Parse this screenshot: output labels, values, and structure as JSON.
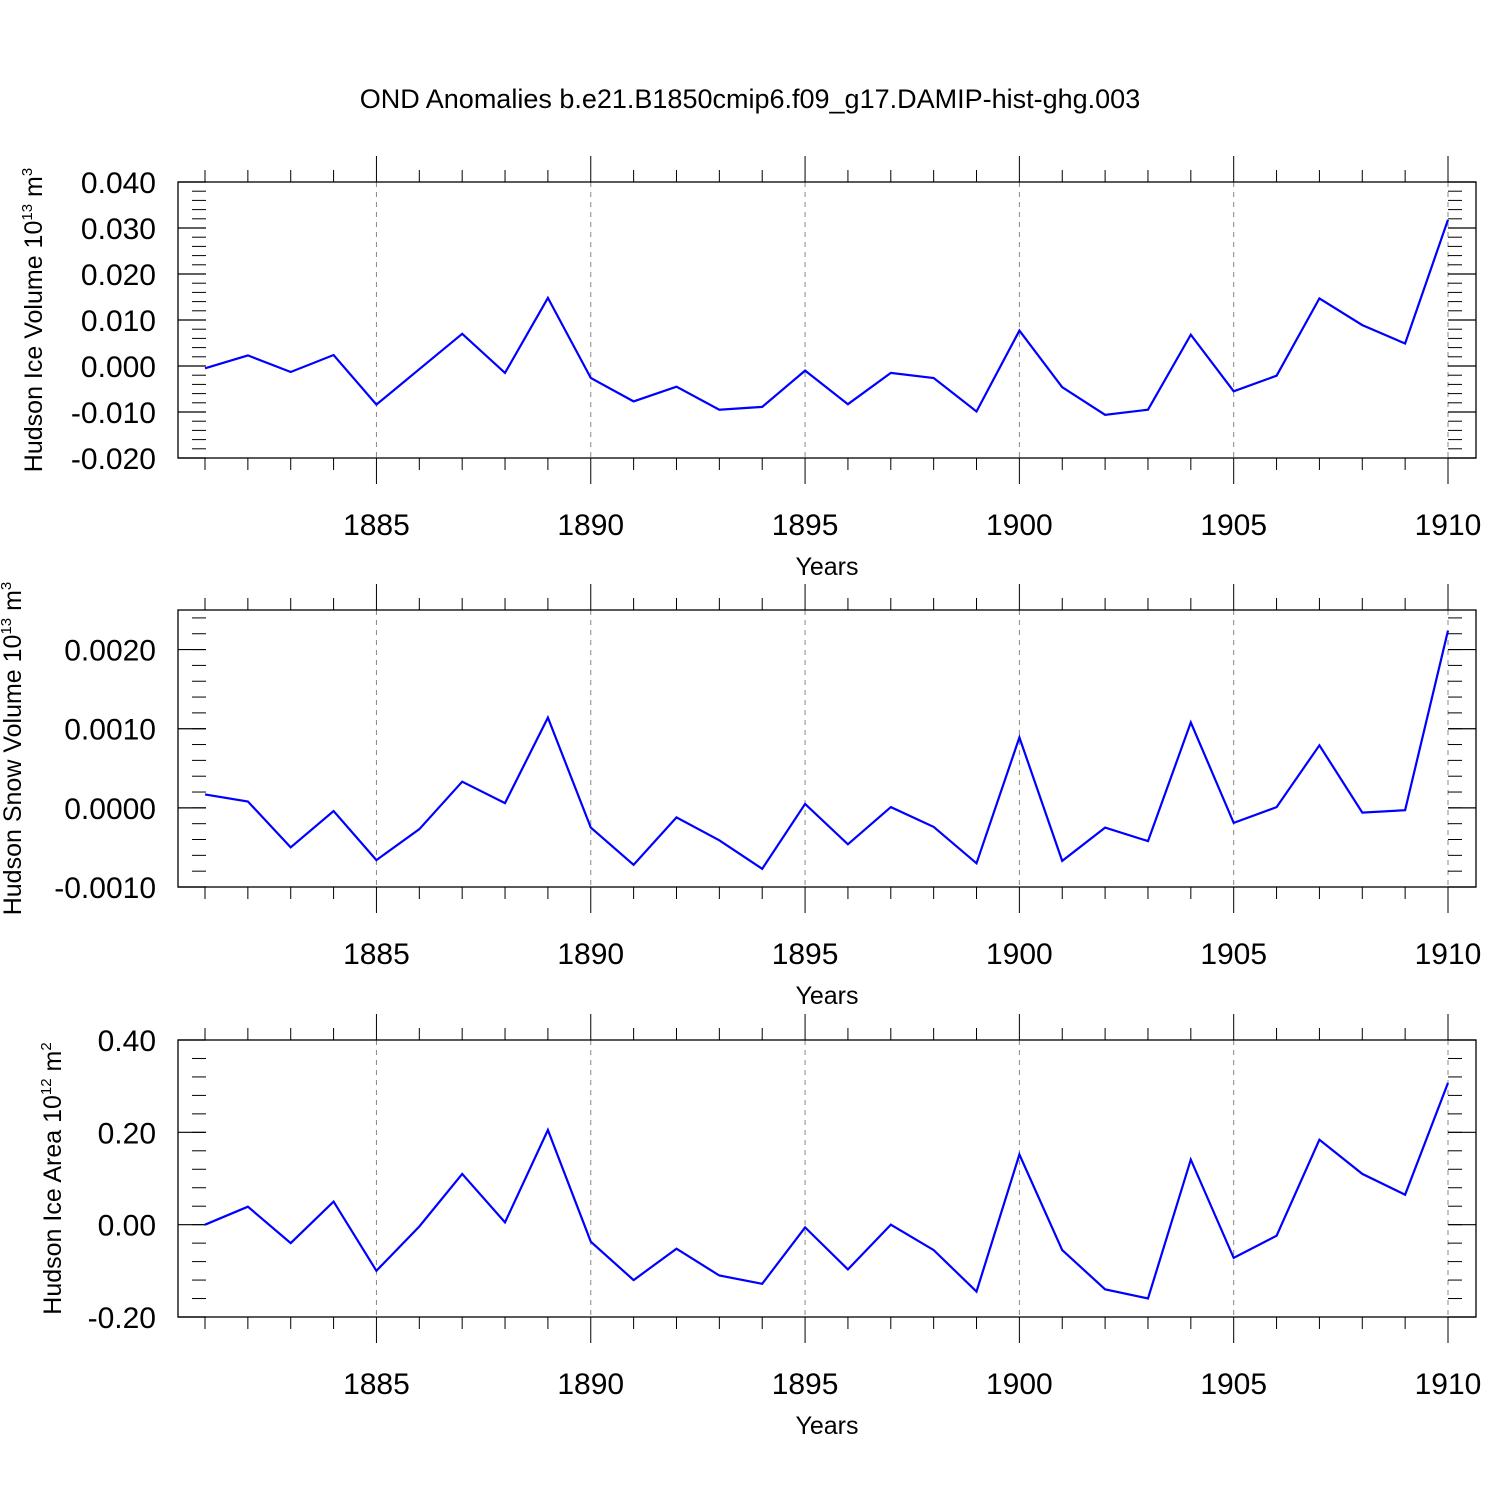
{
  "title": "OND Anomalies b.e21.B1850cmip6.f09_g17.DAMIP-hist-ghg.003",
  "chart_data": [
    {
      "type": "line",
      "ylabel": {
        "base": "Hudson Ice Volume 10",
        "exp": "13",
        "unit": " m",
        "unit_exp": "3"
      },
      "xlabel": "Years",
      "xlim": [
        1881,
        1910
      ],
      "ylim": [
        -0.02,
        0.04
      ],
      "yticks": [
        -0.02,
        -0.01,
        0.0,
        0.01,
        0.02,
        0.03,
        0.04
      ],
      "yticklabels": [
        "-0.020",
        "-0.010",
        "0.000",
        "0.010",
        "0.020",
        "0.030",
        "0.040"
      ],
      "yminor": 0.002,
      "xticks": [
        1885,
        1890,
        1895,
        1900,
        1905,
        1910
      ],
      "xticklabels": [
        "1885",
        "1890",
        "1895",
        "1900",
        "1905",
        "1910"
      ],
      "color": "#0000ff",
      "x": [
        1881,
        1882,
        1883,
        1884,
        1885,
        1886,
        1887,
        1888,
        1889,
        1890,
        1891,
        1892,
        1893,
        1894,
        1895,
        1896,
        1897,
        1898,
        1899,
        1900,
        1901,
        1902,
        1903,
        1904,
        1905,
        1906,
        1907,
        1908,
        1909,
        1910
      ],
      "values": [
        -0.0005,
        0.0023,
        -0.0013,
        0.0024,
        -0.0084,
        -0.0007,
        0.007,
        -0.0015,
        0.0148,
        -0.0026,
        -0.0077,
        -0.0045,
        -0.0095,
        -0.0089,
        -0.001,
        -0.0083,
        -0.0015,
        -0.0026,
        -0.0099,
        0.0077,
        -0.0046,
        -0.0106,
        -0.0095,
        0.0068,
        -0.0055,
        -0.0021,
        0.0147,
        0.0089,
        0.0049,
        0.0318
      ]
    },
    {
      "type": "line",
      "ylabel": {
        "base": "Hudson Snow Volume 10",
        "exp": "13",
        "unit": " m",
        "unit_exp": "3"
      },
      "xlabel": "Years",
      "xlim": [
        1881,
        1910
      ],
      "ylim": [
        -0.001,
        0.0025
      ],
      "yticks": [
        -0.001,
        0.0,
        0.001,
        0.002
      ],
      "yticklabels": [
        "-0.0010",
        "0.0000",
        "0.0010",
        "0.0020"
      ],
      "yminor": 0.0002,
      "xticks": [
        1885,
        1890,
        1895,
        1900,
        1905,
        1910
      ],
      "xticklabels": [
        "1885",
        "1890",
        "1895",
        "1900",
        "1905",
        "1910"
      ],
      "color": "#0000ff",
      "x": [
        1881,
        1882,
        1883,
        1884,
        1885,
        1886,
        1887,
        1888,
        1889,
        1890,
        1891,
        1892,
        1893,
        1894,
        1895,
        1896,
        1897,
        1898,
        1899,
        1900,
        1901,
        1902,
        1903,
        1904,
        1905,
        1906,
        1907,
        1908,
        1909,
        1910
      ],
      "values": [
        0.00017,
        8e-05,
        -0.0005,
        -4e-05,
        -0.00066,
        -0.00027,
        0.00033,
        6e-05,
        0.00114,
        -0.00025,
        -0.00072,
        -0.00012,
        -0.00041,
        -0.00077,
        5e-05,
        -0.00046,
        1e-05,
        -0.00024,
        -0.0007,
        0.00089,
        -0.00067,
        -0.00025,
        -0.00042,
        0.00108,
        -0.00019,
        1e-05,
        0.00079,
        -6e-05,
        -3e-05,
        0.00224
      ]
    },
    {
      "type": "line",
      "ylabel": {
        "base": "Hudson Ice Area 10",
        "exp": "12",
        "unit": " m",
        "unit_exp": "2"
      },
      "xlabel": "Years",
      "xlim": [
        1881,
        1910
      ],
      "ylim": [
        -0.2,
        0.4
      ],
      "yticks": [
        -0.2,
        0.0,
        0.2,
        0.4
      ],
      "yticklabels": [
        "-0.20",
        "0.00",
        "0.20",
        "0.40"
      ],
      "yminor": 0.04,
      "xticks": [
        1885,
        1890,
        1895,
        1900,
        1905,
        1910
      ],
      "xticklabels": [
        "1885",
        "1890",
        "1895",
        "1900",
        "1905",
        "1910"
      ],
      "color": "#0000ff",
      "x": [
        1881,
        1882,
        1883,
        1884,
        1885,
        1886,
        1887,
        1888,
        1889,
        1890,
        1891,
        1892,
        1893,
        1894,
        1895,
        1896,
        1897,
        1898,
        1899,
        1900,
        1901,
        1902,
        1903,
        1904,
        1905,
        1906,
        1907,
        1908,
        1909,
        1910
      ],
      "values": [
        0.0,
        0.039,
        -0.04,
        0.05,
        -0.1,
        -0.004,
        0.11,
        0.005,
        0.205,
        -0.037,
        -0.12,
        -0.052,
        -0.11,
        -0.128,
        -0.006,
        -0.097,
        0.0,
        -0.055,
        -0.145,
        0.152,
        -0.055,
        -0.14,
        -0.16,
        0.141,
        -0.072,
        -0.024,
        0.184,
        0.11,
        0.065,
        0.307
      ]
    }
  ]
}
